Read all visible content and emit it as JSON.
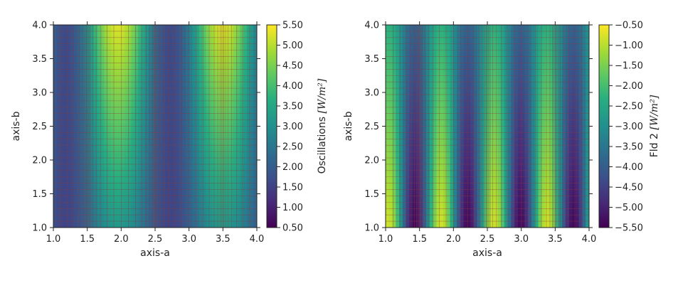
{
  "chart_data": [
    {
      "type": "heatmap",
      "xlabel": "axis-a",
      "ylabel": "axis-b",
      "xlim": [
        1.0,
        4.0
      ],
      "ylim": [
        1.0,
        4.0
      ],
      "xticks": [
        "1.0",
        "1.5",
        "2.0",
        "2.5",
        "3.0",
        "3.5",
        "4.0"
      ],
      "yticks": [
        "1.0",
        "1.5",
        "2.0",
        "2.5",
        "3.0",
        "3.5",
        "4.0"
      ],
      "colormap": "viridis",
      "mesh_lines": true,
      "mesh_color": "#8b3a3a",
      "colorbar": {
        "label": "Oscillations",
        "unit": "[W/m²]",
        "range": [
          0.5,
          5.5
        ],
        "ticks": [
          "0.50",
          "1.00",
          "1.50",
          "2.00",
          "2.50",
          "3.00",
          "3.50",
          "4.00",
          "4.50",
          "5.00",
          "5.50"
        ]
      }
    },
    {
      "type": "heatmap",
      "xlabel": "axis-a",
      "ylabel": "axis-b",
      "xlim": [
        1.0,
        4.0
      ],
      "ylim": [
        1.0,
        4.0
      ],
      "xticks": [
        "1.0",
        "1.5",
        "2.0",
        "2.5",
        "3.0",
        "3.5",
        "4.0"
      ],
      "yticks": [
        "1.0",
        "1.5",
        "2.0",
        "2.5",
        "3.0",
        "3.5",
        "4.0"
      ],
      "colormap": "viridis",
      "mesh_lines": true,
      "mesh_color": "#8b3a3a",
      "colorbar": {
        "label": "Fld 2",
        "unit": "[W/m²]",
        "range": [
          -5.5,
          -0.5
        ],
        "ticks": [
          "-5.50",
          "-5.00",
          "-4.50",
          "-4.00",
          "-3.50",
          "-3.00",
          "-2.50",
          "-2.00",
          "-1.50",
          "-1.00",
          "-0.50"
        ]
      }
    }
  ]
}
